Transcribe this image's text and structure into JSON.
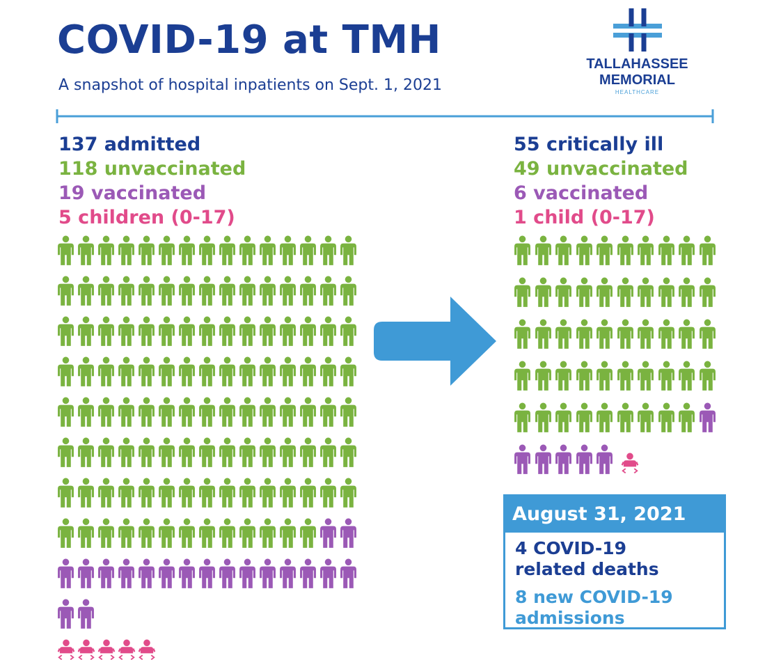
{
  "header": {
    "title": "COVID-19 at TMH",
    "subtitle": "A snapshot of hospital inpatients on Sept. 1, 2021"
  },
  "logo": {
    "line1": "TALLAHASSEE",
    "line2": "MEMORIAL",
    "line3": "HEALTHCARE"
  },
  "admitted": {
    "total_label": "137 admitted",
    "unvaccinated_label": "118 unvaccinated",
    "vaccinated_label": "19 vaccinated",
    "children_label": "5 children (0-17)",
    "unvaccinated": 118,
    "vaccinated": 19,
    "children": 5
  },
  "critical": {
    "total_label": "55 critically ill",
    "unvaccinated_label": "49 unvaccinated",
    "vaccinated_label": "6 vaccinated",
    "children_label": "1 child (0-17)",
    "unvaccinated": 49,
    "vaccinated": 6,
    "children": 1
  },
  "daily": {
    "date": "August 31, 2021",
    "deaths_line1": "4 COVID-19",
    "deaths_line2": "related deaths",
    "admissions_line1": "8 new COVID-19",
    "admissions_line2": "admissions"
  },
  "colors": {
    "navy": "#1b3e93",
    "unvaccinated": "#7ab340",
    "vaccinated": "#9b59b6",
    "children": "#e14b8a",
    "accent_blue": "#3f9ad6"
  },
  "icons": {
    "person": "person-icon",
    "child": "child-icon",
    "arrow": "arrow-right-icon",
    "logo": "medical-cross-icon"
  }
}
